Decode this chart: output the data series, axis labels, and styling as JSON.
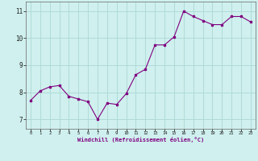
{
  "x_vals": [
    0,
    1,
    2,
    3,
    4,
    5,
    6,
    7,
    8,
    9,
    10,
    11,
    12,
    13,
    14,
    15,
    16,
    17,
    18,
    19,
    20,
    21,
    22,
    23
  ],
  "y_vals": [
    7.7,
    8.05,
    8.2,
    8.25,
    7.85,
    7.75,
    7.65,
    7.0,
    7.6,
    7.55,
    7.95,
    8.65,
    8.85,
    9.75,
    9.75,
    10.05,
    11.0,
    10.8,
    10.65,
    10.5,
    10.5,
    10.8,
    10.8,
    10.6
  ],
  "line_color": "#800080",
  "marker": "s",
  "marker_size": 2,
  "bg_color": "#cff0ee",
  "grid_color": "#aad8d4",
  "xlabel": "Windchill (Refroidissement éolien,°C)",
  "yticks": [
    7,
    8,
    9,
    10,
    11
  ],
  "xlim": [
    -0.5,
    23.5
  ],
  "ylim": [
    6.65,
    11.35
  ]
}
